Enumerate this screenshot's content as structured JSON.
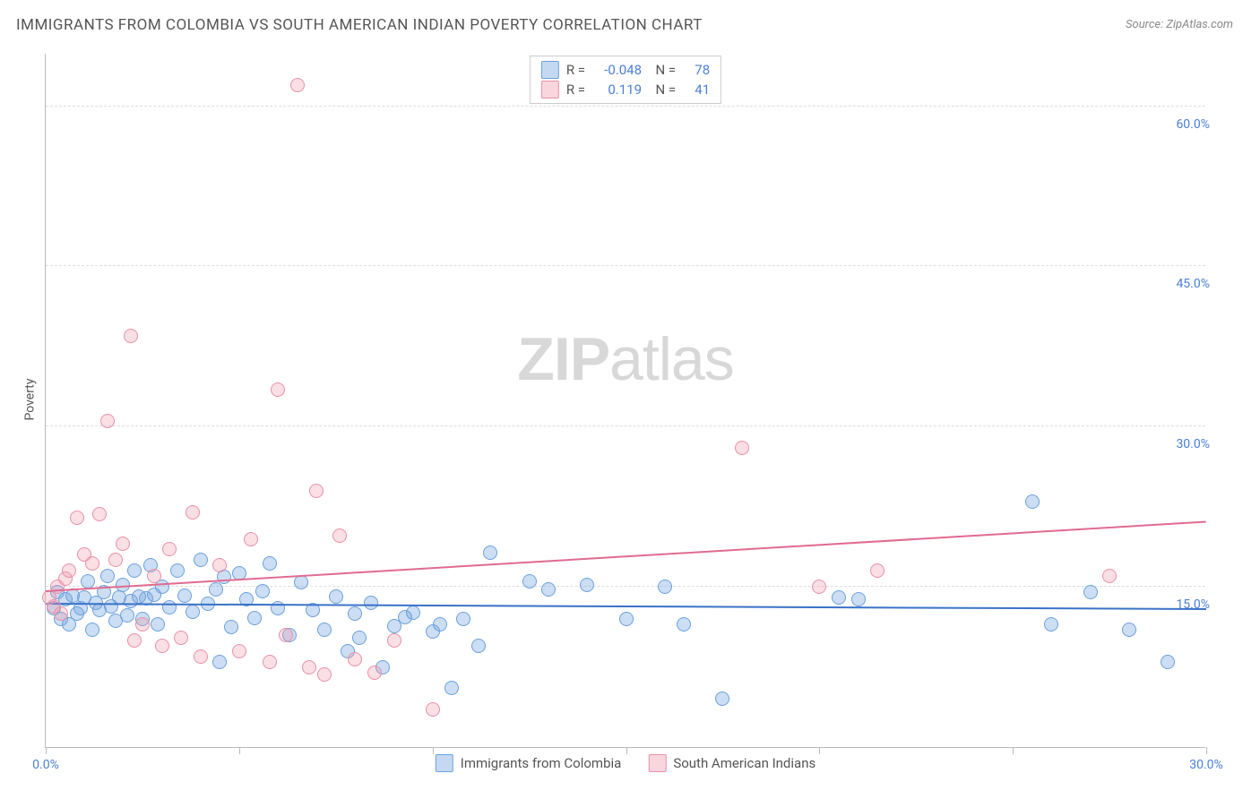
{
  "title": "IMMIGRANTS FROM COLOMBIA VS SOUTH AMERICAN INDIAN POVERTY CORRELATION CHART",
  "source": "Source: ZipAtlas.com",
  "ylabel": "Poverty",
  "watermark_bold": "ZIP",
  "watermark_rest": "atlas",
  "chart": {
    "type": "scatter",
    "xlim": [
      0,
      30
    ],
    "ylim": [
      0,
      65
    ],
    "x_ticks": [
      0,
      5,
      10,
      15,
      20,
      25,
      30
    ],
    "x_tick_labels": [
      "0.0%",
      "",
      "",
      "",
      "",
      "",
      "30.0%"
    ],
    "y_gridlines": [
      15,
      30,
      45,
      60
    ],
    "y_tick_labels": [
      "15.0%",
      "30.0%",
      "45.0%",
      "60.0%"
    ],
    "background_color": "#ffffff",
    "grid_color": "#dddddd",
    "axis_color": "#bbbbbb",
    "point_radius": 8,
    "series": [
      {
        "name": "Immigrants from Colombia",
        "color_fill": "rgba(108,160,220,0.35)",
        "color_stroke": "#6ca0dc",
        "R": "-0.048",
        "N": "78",
        "trend_start_y": 13.3,
        "trend_end_y": 12.8,
        "trend_color": "#3a72c8",
        "points": [
          [
            0.2,
            13.0
          ],
          [
            0.3,
            14.5
          ],
          [
            0.4,
            12.0
          ],
          [
            0.5,
            13.8
          ],
          [
            0.6,
            11.5
          ],
          [
            0.7,
            14.2
          ],
          [
            0.8,
            12.5
          ],
          [
            0.9,
            13.0
          ],
          [
            1.0,
            14.0
          ],
          [
            1.1,
            15.5
          ],
          [
            1.2,
            11.0
          ],
          [
            1.3,
            13.5
          ],
          [
            1.4,
            12.8
          ],
          [
            1.5,
            14.5
          ],
          [
            1.6,
            16.0
          ],
          [
            1.7,
            13.2
          ],
          [
            1.8,
            11.8
          ],
          [
            1.9,
            14.0
          ],
          [
            2.0,
            15.2
          ],
          [
            2.1,
            12.3
          ],
          [
            2.2,
            13.7
          ],
          [
            2.3,
            16.5
          ],
          [
            2.4,
            14.1
          ],
          [
            2.5,
            12.0
          ],
          [
            2.6,
            13.9
          ],
          [
            2.7,
            17.0
          ],
          [
            2.8,
            14.3
          ],
          [
            2.9,
            11.5
          ],
          [
            3.0,
            15.0
          ],
          [
            3.2,
            13.1
          ],
          [
            3.4,
            16.5
          ],
          [
            3.6,
            14.2
          ],
          [
            3.8,
            12.7
          ],
          [
            4.0,
            17.5
          ],
          [
            4.2,
            13.4
          ],
          [
            4.4,
            14.8
          ],
          [
            4.6,
            15.9
          ],
          [
            4.8,
            11.2
          ],
          [
            5.0,
            16.3
          ],
          [
            5.2,
            13.8
          ],
          [
            5.4,
            12.1
          ],
          [
            5.6,
            14.6
          ],
          [
            5.8,
            17.2
          ],
          [
            6.0,
            13.0
          ],
          [
            6.3,
            10.5
          ],
          [
            6.6,
            15.4
          ],
          [
            6.9,
            12.8
          ],
          [
            7.2,
            11.0
          ],
          [
            7.5,
            14.1
          ],
          [
            7.8,
            9.0
          ],
          [
            8.1,
            10.2
          ],
          [
            8.4,
            13.5
          ],
          [
            8.7,
            7.5
          ],
          [
            9.0,
            11.3
          ],
          [
            9.5,
            12.6
          ],
          [
            10.0,
            10.8
          ],
          [
            10.5,
            5.5
          ],
          [
            10.8,
            12.0
          ],
          [
            11.2,
            9.5
          ],
          [
            11.5,
            18.2
          ],
          [
            12.5,
            15.5
          ],
          [
            13.0,
            14.8
          ],
          [
            14.0,
            15.2
          ],
          [
            15.0,
            12.0
          ],
          [
            16.0,
            15.0
          ],
          [
            16.5,
            11.5
          ],
          [
            17.5,
            4.5
          ],
          [
            20.5,
            14.0
          ],
          [
            21.0,
            13.8
          ],
          [
            25.5,
            23.0
          ],
          [
            26.0,
            11.5
          ],
          [
            27.0,
            14.5
          ],
          [
            28.0,
            11.0
          ],
          [
            29.0,
            8.0
          ],
          [
            4.5,
            8.0
          ],
          [
            8.0,
            12.5
          ],
          [
            9.3,
            12.2
          ],
          [
            10.2,
            11.5
          ]
        ]
      },
      {
        "name": "South American Indians",
        "color_fill": "rgba(240,150,170,0.30)",
        "color_stroke": "#e890a8",
        "R": "0.119",
        "N": "41",
        "trend_start_y": 14.5,
        "trend_end_y": 21.0,
        "trend_color": "#e06b8f",
        "points": [
          [
            0.1,
            14.0
          ],
          [
            0.2,
            13.2
          ],
          [
            0.3,
            15.0
          ],
          [
            0.4,
            12.5
          ],
          [
            0.5,
            15.8
          ],
          [
            0.6,
            16.5
          ],
          [
            0.8,
            21.5
          ],
          [
            1.0,
            18.0
          ],
          [
            1.2,
            17.2
          ],
          [
            1.4,
            21.8
          ],
          [
            1.6,
            30.5
          ],
          [
            1.8,
            17.5
          ],
          [
            2.0,
            19.0
          ],
          [
            2.2,
            38.5
          ],
          [
            2.3,
            10.0
          ],
          [
            2.5,
            11.5
          ],
          [
            2.8,
            16.0
          ],
          [
            3.0,
            9.5
          ],
          [
            3.2,
            18.5
          ],
          [
            3.5,
            10.2
          ],
          [
            3.8,
            22.0
          ],
          [
            4.0,
            8.5
          ],
          [
            4.5,
            17.0
          ],
          [
            5.0,
            9.0
          ],
          [
            5.3,
            19.5
          ],
          [
            5.8,
            8.0
          ],
          [
            6.0,
            33.5
          ],
          [
            6.2,
            10.5
          ],
          [
            6.5,
            62.0
          ],
          [
            6.8,
            7.5
          ],
          [
            7.0,
            24.0
          ],
          [
            7.2,
            6.8
          ],
          [
            7.6,
            19.8
          ],
          [
            8.0,
            8.2
          ],
          [
            8.5,
            7.0
          ],
          [
            9.0,
            10.0
          ],
          [
            10.0,
            3.5
          ],
          [
            18.0,
            28.0
          ],
          [
            20.0,
            15.0
          ],
          [
            21.5,
            16.5
          ],
          [
            27.5,
            16.0
          ]
        ]
      }
    ],
    "legend_bottom": [
      {
        "label": "Immigrants from Colombia",
        "swatch": "blue"
      },
      {
        "label": "South American Indians",
        "swatch": "pink"
      }
    ]
  }
}
